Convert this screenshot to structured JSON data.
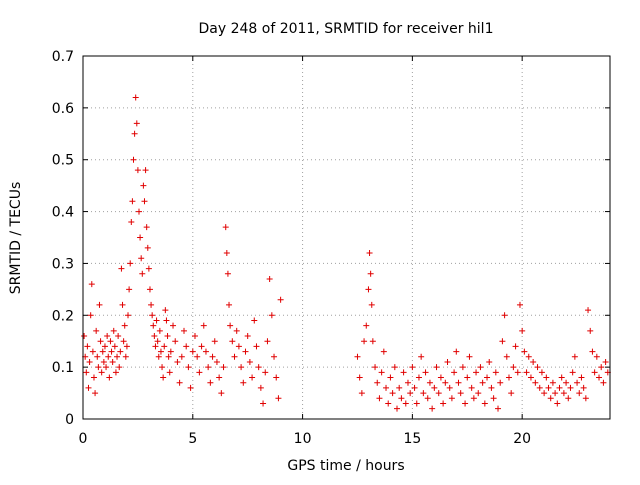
{
  "chart_data": {
    "type": "scatter",
    "title": "Day 248 of 2011, SRMTID for receiver hil1",
    "xlabel": "GPS time / hours",
    "ylabel": "SRMTID / TECUs",
    "xlim": [
      0,
      24
    ],
    "ylim": [
      0,
      0.7
    ],
    "xticks": [
      0,
      5,
      10,
      15,
      20
    ],
    "yticks": [
      0,
      0.1,
      0.2,
      0.3,
      0.4,
      0.5,
      0.6,
      0.7
    ],
    "xtick_labels": [
      "0",
      "5",
      "10",
      "15",
      "20"
    ],
    "ytick_labels": [
      "0",
      "0.1",
      "0.2",
      "0.3",
      "0.4",
      "0.5",
      "0.6",
      "0.7"
    ],
    "grid": true,
    "marker": "+",
    "marker_color": "#e00000",
    "series": [
      {
        "name": "hil1",
        "points": [
          [
            0.05,
            0.16
          ],
          [
            0.1,
            0.12
          ],
          [
            0.15,
            0.09
          ],
          [
            0.2,
            0.14
          ],
          [
            0.25,
            0.06
          ],
          [
            0.3,
            0.11
          ],
          [
            0.35,
            0.2
          ],
          [
            0.4,
            0.26
          ],
          [
            0.45,
            0.13
          ],
          [
            0.5,
            0.08
          ],
          [
            0.55,
            0.05
          ],
          [
            0.6,
            0.17
          ],
          [
            0.65,
            0.12
          ],
          [
            0.7,
            0.1
          ],
          [
            0.75,
            0.22
          ],
          [
            0.8,
            0.15
          ],
          [
            0.85,
            0.09
          ],
          [
            0.9,
            0.13
          ],
          [
            0.95,
            0.11
          ],
          [
            1.0,
            0.14
          ],
          [
            1.05,
            0.1
          ],
          [
            1.1,
            0.16
          ],
          [
            1.15,
            0.12
          ],
          [
            1.2,
            0.08
          ],
          [
            1.25,
            0.15
          ],
          [
            1.3,
            0.13
          ],
          [
            1.35,
            0.11
          ],
          [
            1.4,
            0.17
          ],
          [
            1.45,
            0.14
          ],
          [
            1.5,
            0.09
          ],
          [
            1.55,
            0.12
          ],
          [
            1.6,
            0.16
          ],
          [
            1.65,
            0.1
          ],
          [
            1.7,
            0.13
          ],
          [
            1.75,
            0.29
          ],
          [
            1.8,
            0.22
          ],
          [
            1.85,
            0.15
          ],
          [
            1.9,
            0.18
          ],
          [
            1.95,
            0.12
          ],
          [
            2.0,
            0.14
          ],
          [
            2.05,
            0.2
          ],
          [
            2.1,
            0.25
          ],
          [
            2.15,
            0.3
          ],
          [
            2.2,
            0.38
          ],
          [
            2.25,
            0.42
          ],
          [
            2.3,
            0.5
          ],
          [
            2.35,
            0.55
          ],
          [
            2.4,
            0.62
          ],
          [
            2.45,
            0.57
          ],
          [
            2.5,
            0.48
          ],
          [
            2.55,
            0.4
          ],
          [
            2.6,
            0.35
          ],
          [
            2.65,
            0.31
          ],
          [
            2.7,
            0.28
          ],
          [
            2.75,
            0.45
          ],
          [
            2.8,
            0.42
          ],
          [
            2.85,
            0.48
          ],
          [
            2.9,
            0.37
          ],
          [
            2.95,
            0.33
          ],
          [
            3.0,
            0.29
          ],
          [
            3.05,
            0.25
          ],
          [
            3.1,
            0.22
          ],
          [
            3.15,
            0.2
          ],
          [
            3.2,
            0.18
          ],
          [
            3.25,
            0.16
          ],
          [
            3.3,
            0.14
          ],
          [
            3.35,
            0.19
          ],
          [
            3.4,
            0.15
          ],
          [
            3.45,
            0.12
          ],
          [
            3.5,
            0.17
          ],
          [
            3.55,
            0.13
          ],
          [
            3.6,
            0.1
          ],
          [
            3.65,
            0.08
          ],
          [
            3.7,
            0.14
          ],
          [
            3.75,
            0.21
          ],
          [
            3.8,
            0.19
          ],
          [
            3.85,
            0.16
          ],
          [
            3.9,
            0.12
          ],
          [
            3.95,
            0.09
          ],
          [
            4.0,
            0.13
          ],
          [
            4.1,
            0.18
          ],
          [
            4.2,
            0.15
          ],
          [
            4.3,
            0.11
          ],
          [
            4.4,
            0.07
          ],
          [
            4.5,
            0.12
          ],
          [
            4.6,
            0.17
          ],
          [
            4.7,
            0.14
          ],
          [
            4.8,
            0.1
          ],
          [
            4.9,
            0.06
          ],
          [
            5.0,
            0.13
          ],
          [
            5.1,
            0.16
          ],
          [
            5.2,
            0.12
          ],
          [
            5.3,
            0.09
          ],
          [
            5.4,
            0.14
          ],
          [
            5.5,
            0.18
          ],
          [
            5.6,
            0.13
          ],
          [
            5.7,
            0.1
          ],
          [
            5.8,
            0.07
          ],
          [
            5.9,
            0.12
          ],
          [
            6.0,
            0.15
          ],
          [
            6.1,
            0.11
          ],
          [
            6.2,
            0.08
          ],
          [
            6.3,
            0.05
          ],
          [
            6.4,
            0.1
          ],
          [
            6.5,
            0.37
          ],
          [
            6.55,
            0.32
          ],
          [
            6.6,
            0.28
          ],
          [
            6.65,
            0.22
          ],
          [
            6.7,
            0.18
          ],
          [
            6.8,
            0.15
          ],
          [
            6.9,
            0.12
          ],
          [
            7.0,
            0.17
          ],
          [
            7.1,
            0.14
          ],
          [
            7.2,
            0.1
          ],
          [
            7.3,
            0.07
          ],
          [
            7.4,
            0.13
          ],
          [
            7.5,
            0.16
          ],
          [
            7.6,
            0.11
          ],
          [
            7.7,
            0.08
          ],
          [
            7.8,
            0.19
          ],
          [
            7.9,
            0.14
          ],
          [
            8.0,
            0.1
          ],
          [
            8.1,
            0.06
          ],
          [
            8.2,
            0.03
          ],
          [
            8.3,
            0.09
          ],
          [
            8.4,
            0.15
          ],
          [
            8.5,
            0.27
          ],
          [
            8.6,
            0.2
          ],
          [
            8.7,
            0.12
          ],
          [
            8.8,
            0.08
          ],
          [
            8.9,
            0.04
          ],
          [
            9.0,
            0.23
          ],
          [
            12.5,
            0.12
          ],
          [
            12.6,
            0.08
          ],
          [
            12.7,
            0.05
          ],
          [
            12.8,
            0.15
          ],
          [
            12.9,
            0.18
          ],
          [
            13.0,
            0.25
          ],
          [
            13.05,
            0.32
          ],
          [
            13.1,
            0.28
          ],
          [
            13.15,
            0.22
          ],
          [
            13.2,
            0.15
          ],
          [
            13.3,
            0.1
          ],
          [
            13.4,
            0.07
          ],
          [
            13.5,
            0.04
          ],
          [
            13.6,
            0.09
          ],
          [
            13.7,
            0.13
          ],
          [
            13.8,
            0.06
          ],
          [
            13.9,
            0.03
          ],
          [
            14.0,
            0.08
          ],
          [
            14.1,
            0.05
          ],
          [
            14.2,
            0.1
          ],
          [
            14.3,
            0.02
          ],
          [
            14.4,
            0.06
          ],
          [
            14.5,
            0.04
          ],
          [
            14.6,
            0.09
          ],
          [
            14.7,
            0.03
          ],
          [
            14.8,
            0.07
          ],
          [
            14.9,
            0.05
          ],
          [
            15.0,
            0.1
          ],
          [
            15.1,
            0.06
          ],
          [
            15.2,
            0.03
          ],
          [
            15.3,
            0.08
          ],
          [
            15.4,
            0.12
          ],
          [
            15.5,
            0.05
          ],
          [
            15.6,
            0.09
          ],
          [
            15.7,
            0.04
          ],
          [
            15.8,
            0.07
          ],
          [
            15.9,
            0.02
          ],
          [
            16.0,
            0.06
          ],
          [
            16.1,
            0.1
          ],
          [
            16.2,
            0.05
          ],
          [
            16.3,
            0.08
          ],
          [
            16.4,
            0.03
          ],
          [
            16.5,
            0.07
          ],
          [
            16.6,
            0.11
          ],
          [
            16.7,
            0.06
          ],
          [
            16.8,
            0.04
          ],
          [
            16.9,
            0.09
          ],
          [
            17.0,
            0.13
          ],
          [
            17.1,
            0.07
          ],
          [
            17.2,
            0.05
          ],
          [
            17.3,
            0.1
          ],
          [
            17.4,
            0.03
          ],
          [
            17.5,
            0.08
          ],
          [
            17.6,
            0.12
          ],
          [
            17.7,
            0.06
          ],
          [
            17.8,
            0.04
          ],
          [
            17.9,
            0.09
          ],
          [
            18.0,
            0.05
          ],
          [
            18.1,
            0.1
          ],
          [
            18.2,
            0.07
          ],
          [
            18.3,
            0.03
          ],
          [
            18.4,
            0.08
          ],
          [
            18.5,
            0.11
          ],
          [
            18.6,
            0.06
          ],
          [
            18.7,
            0.04
          ],
          [
            18.8,
            0.09
          ],
          [
            18.9,
            0.02
          ],
          [
            19.0,
            0.07
          ],
          [
            19.1,
            0.15
          ],
          [
            19.2,
            0.2
          ],
          [
            19.3,
            0.12
          ],
          [
            19.4,
            0.08
          ],
          [
            19.5,
            0.05
          ],
          [
            19.6,
            0.1
          ],
          [
            19.7,
            0.14
          ],
          [
            19.8,
            0.09
          ],
          [
            19.9,
            0.22
          ],
          [
            20.0,
            0.17
          ],
          [
            20.1,
            0.13
          ],
          [
            20.2,
            0.09
          ],
          [
            20.3,
            0.12
          ],
          [
            20.4,
            0.08
          ],
          [
            20.5,
            0.11
          ],
          [
            20.6,
            0.07
          ],
          [
            20.7,
            0.1
          ],
          [
            20.8,
            0.06
          ],
          [
            20.9,
            0.09
          ],
          [
            21.0,
            0.05
          ],
          [
            21.1,
            0.08
          ],
          [
            21.2,
            0.06
          ],
          [
            21.3,
            0.04
          ],
          [
            21.4,
            0.07
          ],
          [
            21.5,
            0.05
          ],
          [
            21.6,
            0.03
          ],
          [
            21.7,
            0.06
          ],
          [
            21.8,
            0.08
          ],
          [
            21.9,
            0.05
          ],
          [
            22.0,
            0.07
          ],
          [
            22.1,
            0.04
          ],
          [
            22.2,
            0.06
          ],
          [
            22.3,
            0.09
          ],
          [
            22.4,
            0.12
          ],
          [
            22.5,
            0.07
          ],
          [
            22.6,
            0.05
          ],
          [
            22.7,
            0.08
          ],
          [
            22.8,
            0.06
          ],
          [
            22.9,
            0.04
          ],
          [
            23.0,
            0.21
          ],
          [
            23.1,
            0.17
          ],
          [
            23.2,
            0.13
          ],
          [
            23.3,
            0.09
          ],
          [
            23.4,
            0.12
          ],
          [
            23.5,
            0.08
          ],
          [
            23.6,
            0.1
          ],
          [
            23.7,
            0.07
          ],
          [
            23.8,
            0.11
          ],
          [
            23.9,
            0.09
          ]
        ]
      }
    ]
  }
}
